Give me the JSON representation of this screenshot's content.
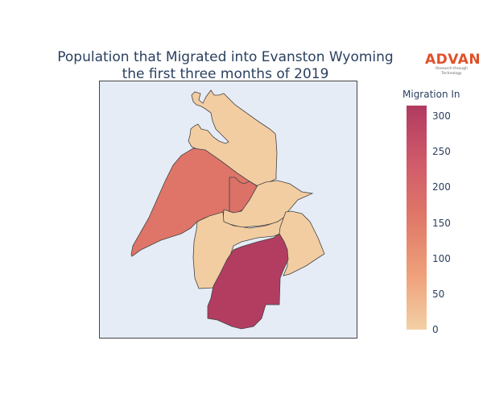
{
  "chart_data": {
    "type": "choropleth",
    "title": [
      "Population that Migrated into Evanston Wyoming",
      "the first three months of 2019"
    ],
    "colorbar": {
      "title": "Migration In",
      "range": [
        0,
        315
      ],
      "ticks": [
        0,
        50,
        100,
        150,
        200,
        250,
        300
      ],
      "colorscale": [
        "#f3d0a5",
        "#ef9f7a",
        "#e07868",
        "#cf5a6a",
        "#b13b60"
      ]
    },
    "regions": [
      {
        "value": 5
      },
      {
        "value": 165
      },
      {
        "value": 175
      },
      {
        "value": 5
      },
      {
        "value": 5
      },
      {
        "value": 5
      },
      {
        "value": 310
      }
    ],
    "background_color": "#e5ecf6"
  },
  "logo": {
    "brand": "ADVAN",
    "tagline": "Research through Technology"
  }
}
